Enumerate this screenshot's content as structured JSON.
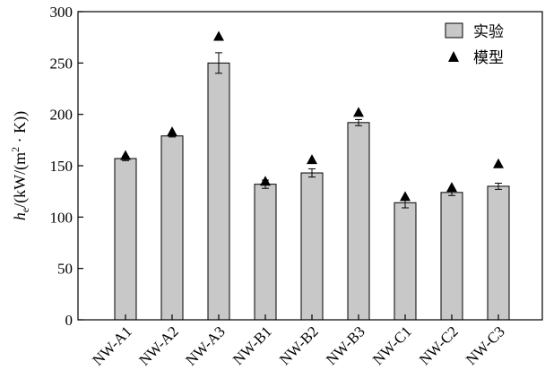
{
  "chart_data": {
    "type": "bar",
    "title": "",
    "xlabel": "",
    "ylabel": {
      "h": "h",
      "sub": "e",
      "pre": "/(kW/(m",
      "sup": "2",
      "post": " · K))"
    },
    "categories": [
      "NW-A1",
      "NW-A2",
      "NW-A3",
      "NW-B1",
      "NW-B2",
      "NW-B3",
      "NW-C1",
      "NW-C2",
      "NW-C3"
    ],
    "ylim": [
      0,
      300
    ],
    "yticks": [
      0,
      50,
      100,
      150,
      200,
      250,
      300
    ],
    "series": [
      {
        "name": "实验",
        "kind": "bar",
        "color": "#c8c8c8",
        "values": [
          157,
          179,
          250,
          132,
          143,
          192,
          114,
          124,
          130
        ],
        "error": [
          2,
          1,
          10,
          4,
          4,
          3,
          5,
          3,
          3
        ]
      },
      {
        "name": "模型",
        "kind": "marker",
        "marker": "triangle",
        "color": "#000000",
        "values": [
          160,
          183,
          276,
          135,
          156,
          202,
          120,
          129,
          152
        ]
      }
    ],
    "legend": {
      "position": "top-right",
      "labels": [
        "实验",
        "模型"
      ]
    },
    "grid": false
  }
}
